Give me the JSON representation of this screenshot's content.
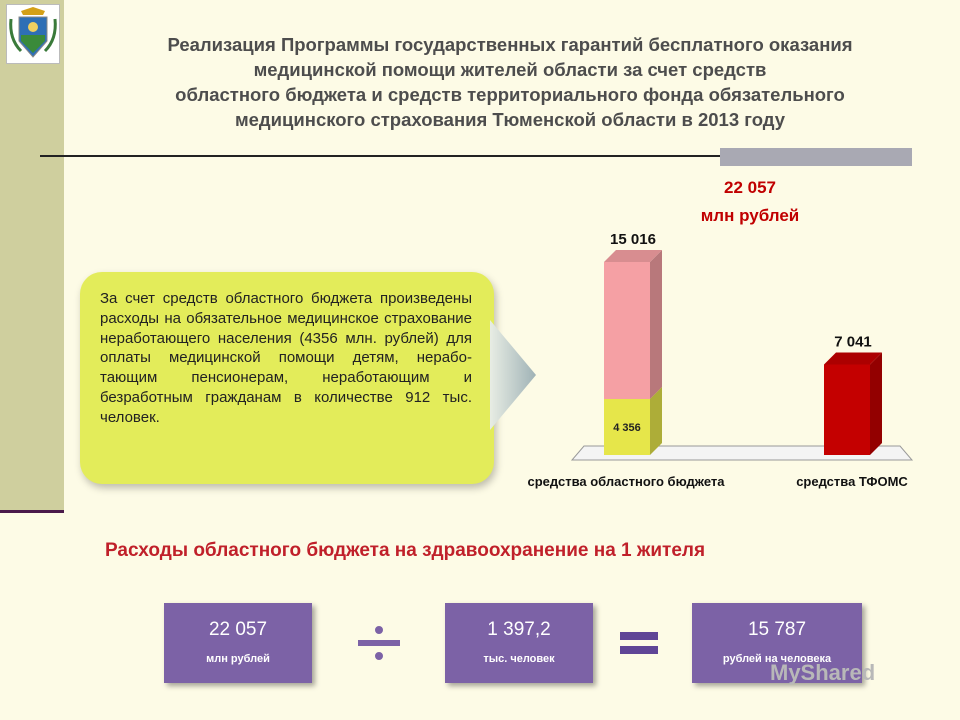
{
  "title_lines": [
    "Реализация Программы государственных гарантий бесплатного оказания",
    "медицинской помощи жителей области за счет средств",
    "областного бюджета и средств территориального фонда обязательного",
    "медицинского страхования Тюменской области в 2013 году"
  ],
  "total": {
    "value": "22 057",
    "unit": "млн рублей",
    "color": "#c00000"
  },
  "callout_text": "За счет средств областного бюджета произведены расходы на обязательное медицинское страхование неработающего населения (4356 млн. рублей) для оплаты медицинской помощи детям, нерабо-тающим пенсионерам, неработающим и безработным гражданам в количестве 912 тыс. человек.",
  "subtitle": "Расходы областного бюджета на здравоохранение на 1 жителя",
  "formula": {
    "box1": {
      "value": "22 057",
      "unit": "млн рублей"
    },
    "box2": {
      "value": "1 397,2",
      "unit": "тыс. человек"
    },
    "box3": {
      "value": "15 787",
      "unit": "рублей на человека"
    },
    "divide_icon": "divide-icon",
    "equals_icon": "equals-icon"
  },
  "watermark": "MyShared",
  "chart_data": {
    "type": "bar",
    "stacked": true,
    "categories": [
      "средства областного бюджета",
      "средства ТФОМС"
    ],
    "totals": [
      "15 016",
      "7 041"
    ],
    "series": [
      {
        "values": [
          4356,
          0
        ],
        "labels": [
          "4 356",
          ""
        ],
        "color": "#e6e64a"
      },
      {
        "values": [
          10660,
          7041
        ],
        "labels": [
          "",
          ""
        ],
        "colors": [
          "#f5a0a4",
          "#c40000"
        ]
      }
    ],
    "ylim": [
      0,
      16000
    ],
    "grid": false,
    "legend": "none"
  }
}
